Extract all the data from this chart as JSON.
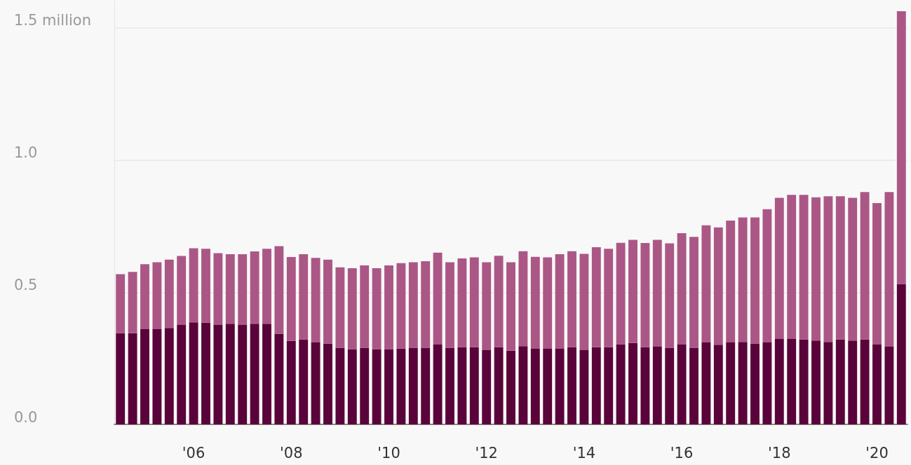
{
  "chart_data": {
    "type": "bar",
    "stacked": true,
    "grid": "y",
    "categories": [
      null,
      null,
      null,
      null,
      null,
      null,
      "'06",
      null,
      null,
      null,
      null,
      null,
      null,
      null,
      "'08",
      null,
      null,
      null,
      null,
      null,
      null,
      null,
      "'10",
      null,
      null,
      null,
      null,
      null,
      null,
      null,
      "'12",
      null,
      null,
      null,
      null,
      null,
      null,
      null,
      "'14",
      null,
      null,
      null,
      null,
      null,
      null,
      null,
      "'16",
      null,
      null,
      null,
      null,
      null,
      null,
      null,
      "'18",
      null,
      null,
      null,
      null,
      null,
      null,
      null,
      "'20",
      null,
      null
    ],
    "ylim": [
      0,
      1.6
    ],
    "yticks": [
      {
        "value": 0,
        "label": "0.0"
      },
      {
        "value": 0.5,
        "label": "0.5"
      },
      {
        "value": 1,
        "label": "1.0"
      },
      {
        "value": 1.5,
        "label": "1.5 million"
      }
    ],
    "series": [
      {
        "color": "#5a033b",
        "values": [
          0.345,
          0.345,
          0.36,
          0.36,
          0.365,
          0.376,
          0.386,
          0.385,
          0.376,
          0.381,
          0.376,
          0.381,
          0.381,
          0.343,
          0.316,
          0.321,
          0.31,
          0.306,
          0.29,
          0.285,
          0.29,
          0.285,
          0.285,
          0.287,
          0.29,
          0.29,
          0.302,
          0.29,
          0.292,
          0.292,
          0.281,
          0.292,
          0.279,
          0.296,
          0.286,
          0.286,
          0.286,
          0.292,
          0.281,
          0.292,
          0.292,
          0.303,
          0.308,
          0.292,
          0.294,
          0.29,
          0.302,
          0.29,
          0.31,
          0.301,
          0.31,
          0.312,
          0.306,
          0.31,
          0.323,
          0.323,
          0.321,
          0.317,
          0.312,
          0.321,
          0.317,
          0.321,
          0.302,
          0.294,
          0.531
        ]
      },
      {
        "color": "#ab5786",
        "values": [
          0.223,
          0.232,
          0.246,
          0.253,
          0.258,
          0.261,
          0.28,
          0.279,
          0.272,
          0.263,
          0.268,
          0.273,
          0.283,
          0.331,
          0.317,
          0.323,
          0.32,
          0.317,
          0.304,
          0.306,
          0.311,
          0.306,
          0.316,
          0.323,
          0.323,
          0.327,
          0.348,
          0.323,
          0.336,
          0.34,
          0.332,
          0.346,
          0.334,
          0.359,
          0.348,
          0.346,
          0.358,
          0.363,
          0.364,
          0.378,
          0.372,
          0.384,
          0.39,
          0.394,
          0.404,
          0.395,
          0.421,
          0.419,
          0.443,
          0.444,
          0.461,
          0.471,
          0.477,
          0.504,
          0.534,
          0.545,
          0.547,
          0.542,
          0.551,
          0.542,
          0.54,
          0.558,
          0.535,
          0.585,
          1.032
        ]
      }
    ]
  }
}
